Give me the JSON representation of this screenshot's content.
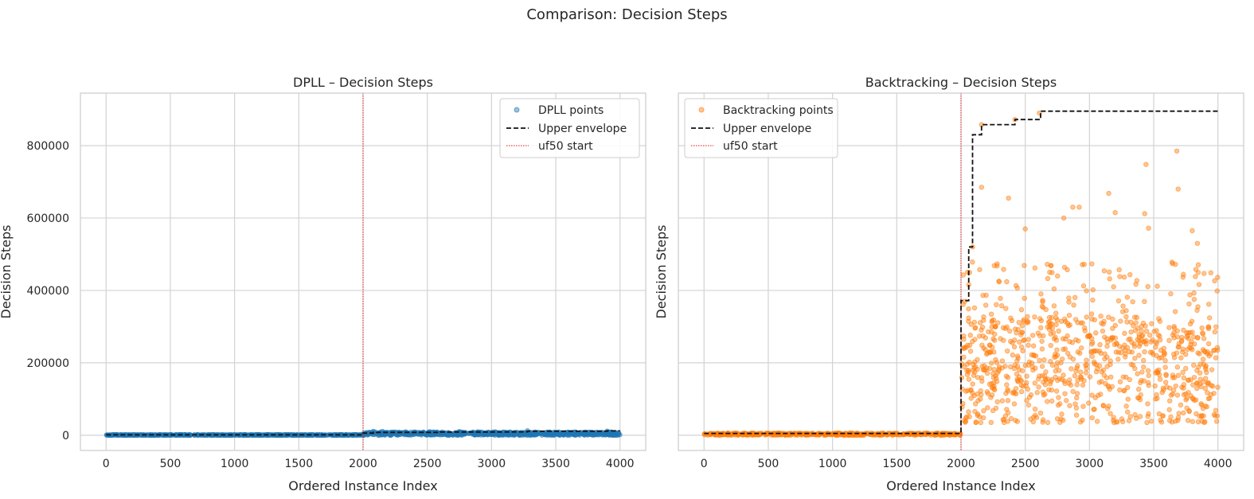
{
  "figure": {
    "title": "Comparison: Decision Steps"
  },
  "chart_data": [
    {
      "type": "scatter",
      "title": "DPLL – Decision Steps",
      "xlabel": "Ordered Instance Index",
      "ylabel": "Decision Steps",
      "xlim": [
        -200,
        4200
      ],
      "ylim": [
        -42000,
        945000
      ],
      "xticks": [
        0,
        500,
        1000,
        1500,
        2000,
        2500,
        3000,
        3500,
        4000
      ],
      "yticks": [
        0,
        200000,
        400000,
        600000,
        800000
      ],
      "ytick_labels_visible": true,
      "grid": true,
      "vline": {
        "x": 2000,
        "label": "uf50 start",
        "color": "#e31a1c"
      },
      "legend_position": "upper right",
      "legend": [
        "DPLL points",
        "Upper envelope",
        "uf50 start"
      ],
      "series": [
        {
          "name": "DPLL points",
          "kind": "scatter",
          "color": "#1f77b4",
          "segments": [
            {
              "x_range": [
                0,
                1999
              ],
              "y_range": [
                0,
                1500
              ]
            },
            {
              "x_range": [
                2000,
                3999
              ],
              "y_range": [
                0,
                9000
              ]
            }
          ],
          "outliers": [
            {
              "x": 2080,
              "y": 11000
            },
            {
              "x": 2150,
              "y": 10500
            },
            {
              "x": 2520,
              "y": 9500
            },
            {
              "x": 3280,
              "y": 12500
            },
            {
              "x": 3900,
              "y": 11500
            },
            {
              "x": 2750,
              "y": 10000
            }
          ]
        },
        {
          "name": "Upper envelope",
          "kind": "step",
          "color": "#111111",
          "points": [
            [
              0,
              1000
            ],
            [
              2000,
              1000
            ],
            [
              2000,
              6000
            ],
            [
              2080,
              6000
            ],
            [
              2080,
              8000
            ],
            [
              2600,
              8000
            ],
            [
              2600,
              9000
            ],
            [
              3000,
              9000
            ],
            [
              3280,
              9500
            ],
            [
              3280,
              11000
            ],
            [
              3900,
              11000
            ],
            [
              3900,
              12000
            ],
            [
              4000,
              12000
            ]
          ]
        }
      ]
    },
    {
      "type": "scatter",
      "title": "Backtracking – Decision Steps",
      "xlabel": "Ordered Instance Index",
      "ylabel": "Decision Steps",
      "xlim": [
        -200,
        4200
      ],
      "ylim": [
        -42000,
        945000
      ],
      "xticks": [
        0,
        500,
        1000,
        1500,
        2000,
        2500,
        3000,
        3500,
        4000
      ],
      "yticks": [
        0,
        200000,
        400000,
        600000,
        800000
      ],
      "ytick_labels_visible": false,
      "grid": true,
      "vline": {
        "x": 2000,
        "label": "uf50 start",
        "color": "#e31a1c"
      },
      "legend_position": "upper left",
      "legend": [
        "Backtracking points",
        "Upper envelope",
        "uf50 start"
      ],
      "series": [
        {
          "name": "Backtracking points",
          "kind": "scatter",
          "color": "#ff7f0e",
          "segments": [
            {
              "x_range": [
                0,
                1999
              ],
              "y_range": [
                0,
                6000
              ]
            },
            {
              "x_range": [
                2000,
                3999
              ],
              "y_range": [
                35000,
                480000
              ]
            }
          ],
          "outliers": [
            {
              "x": 2030,
              "y": 370000
            },
            {
              "x": 2090,
              "y": 520000
            },
            {
              "x": 2160,
              "y": 685000
            },
            {
              "x": 2370,
              "y": 655000
            },
            {
              "x": 2610,
              "y": 890000
            },
            {
              "x": 2870,
              "y": 630000
            },
            {
              "x": 2920,
              "y": 630000
            },
            {
              "x": 3150,
              "y": 668000
            },
            {
              "x": 3200,
              "y": 615000
            },
            {
              "x": 3430,
              "y": 612000
            },
            {
              "x": 3440,
              "y": 748000
            },
            {
              "x": 3460,
              "y": 572000
            },
            {
              "x": 3680,
              "y": 785000
            },
            {
              "x": 3690,
              "y": 680000
            },
            {
              "x": 3800,
              "y": 565000
            },
            {
              "x": 3840,
              "y": 530000
            },
            {
              "x": 2800,
              "y": 600000
            },
            {
              "x": 2500,
              "y": 570000
            },
            {
              "x": 2420,
              "y": 872000
            },
            {
              "x": 2160,
              "y": 858000
            }
          ]
        },
        {
          "name": "Upper envelope",
          "kind": "step",
          "color": "#111111",
          "points": [
            [
              0,
              5000
            ],
            [
              2000,
              5000
            ],
            [
              2000,
              372000
            ],
            [
              2060,
              372000
            ],
            [
              2060,
              520000
            ],
            [
              2090,
              520000
            ],
            [
              2090,
              830000
            ],
            [
              2160,
              830000
            ],
            [
              2160,
              858000
            ],
            [
              2420,
              858000
            ],
            [
              2420,
              872000
            ],
            [
              2620,
              872000
            ],
            [
              2620,
              895000
            ],
            [
              4000,
              895000
            ]
          ]
        }
      ]
    }
  ]
}
